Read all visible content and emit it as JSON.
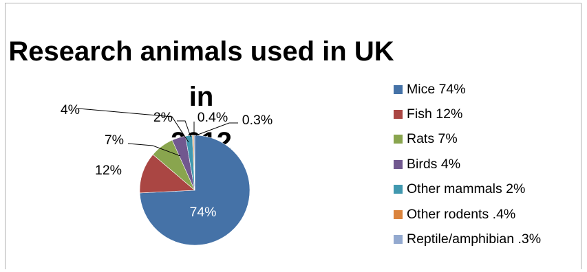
{
  "chart_data": {
    "type": "pie",
    "title": "Research animals used in UK in 2012",
    "title_lines": [
      "Research animals used in UK in",
      "2012"
    ],
    "slices": [
      {
        "legend": "Mice 74%",
        "data_label": "74%",
        "value": 74,
        "color": "#4572a7"
      },
      {
        "legend": "Fish 12%",
        "data_label": "12%",
        "value": 12,
        "color": "#aa4643"
      },
      {
        "legend": "Rats 7%",
        "data_label": "7%",
        "value": 7,
        "color": "#89a54e"
      },
      {
        "legend": "Birds 4%",
        "data_label": "4%",
        "value": 4,
        "color": "#71588f"
      },
      {
        "legend": "Other mammals 2%",
        "data_label": "2%",
        "value": 2,
        "color": "#4198af"
      },
      {
        "legend": "Other rodents .4%",
        "data_label": "0.4%",
        "value": 0.4,
        "color": "#db843d"
      },
      {
        "legend": "Reptile/amphibian .3%",
        "data_label": "0.3%",
        "value": 0.3,
        "color": "#93a9cf"
      }
    ],
    "legend_position": "right"
  }
}
